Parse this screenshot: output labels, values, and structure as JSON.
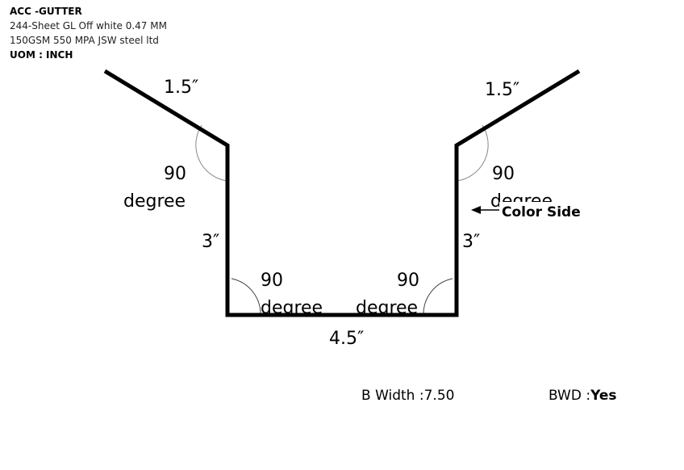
{
  "header": {
    "title": "ACC -GUTTER",
    "description": "244-Sheet GL Off white 0.47 MM 150GSM 550 MPA JSW steel ltd",
    "uom": "UOM : INCH"
  },
  "dimensions": {
    "left_flange": "1.5″",
    "right_flange": "1.5″",
    "left_wall": "3″",
    "right_wall": "3″",
    "base": "4.5″"
  },
  "angles": {
    "value": "90",
    "unit": "degree"
  },
  "color_side_label": "Color Side",
  "footer": {
    "b_width_label": "B Width :",
    "b_width_value": "7.50",
    "bwd_label": "BWD :",
    "bwd_value": "Yes"
  }
}
